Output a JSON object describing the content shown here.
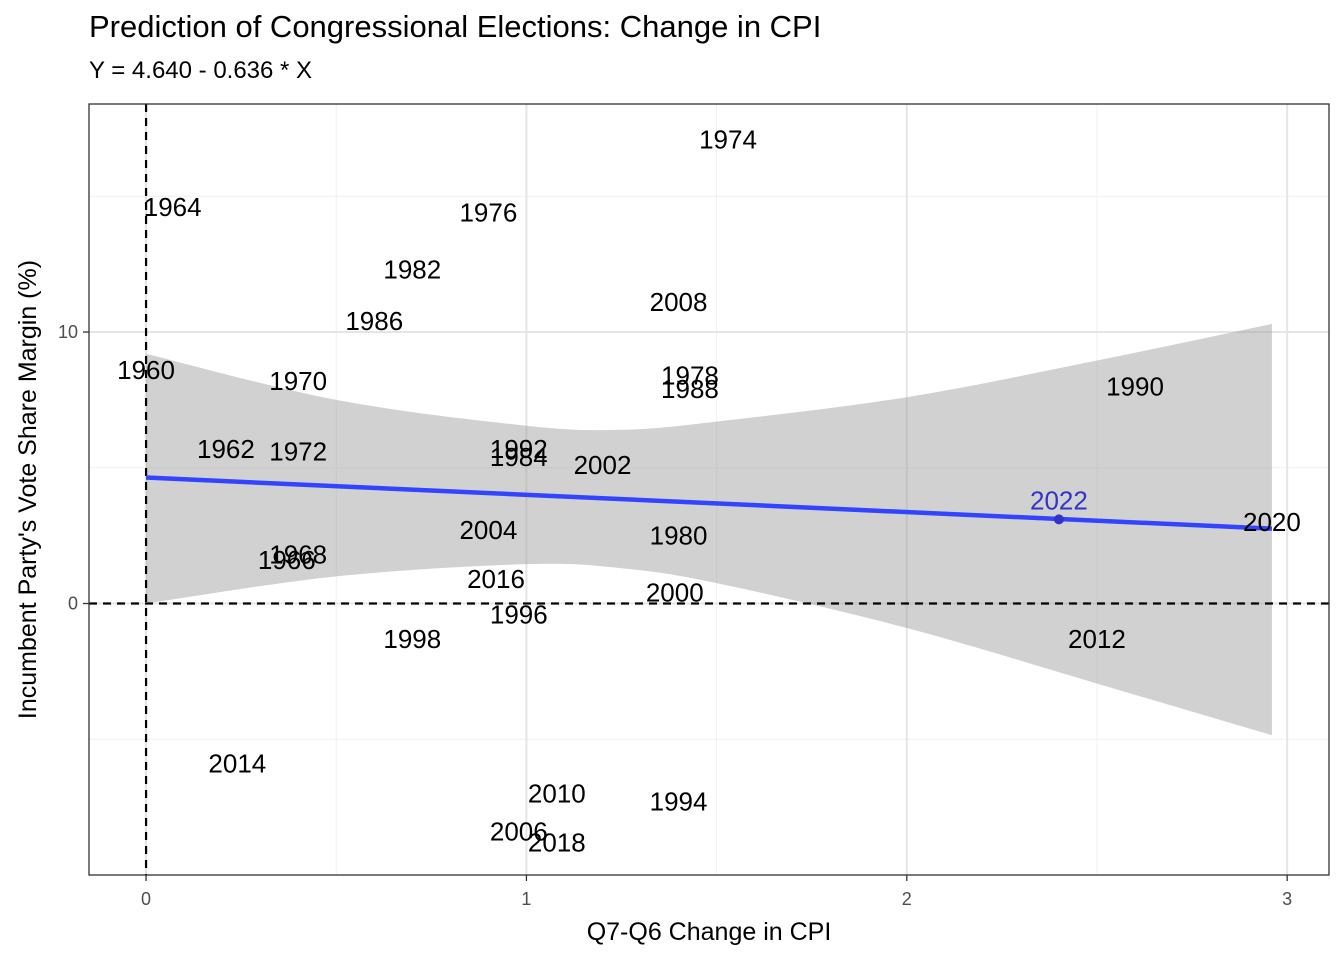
{
  "chart_data": {
    "type": "scatter",
    "title": "Prediction of Congressional Elections: Change in CPI",
    "subtitle": "Y = 4.640 - 0.636 * X",
    "xlabel": "Q7-Q6 Change in CPI",
    "ylabel": "Incumbent Party's Vote Share Margin (%)",
    "xlim": [
      -0.15,
      3.11
    ],
    "ylim": [
      -10.0,
      18.4
    ],
    "x_ticks": [
      0,
      1,
      2,
      3
    ],
    "y_ticks": [
      0,
      10
    ],
    "grid": true,
    "reference_lines": {
      "x": 0,
      "y": 0,
      "style": "dashed"
    },
    "colors": {
      "regression_line": "#3344ff",
      "confidence_band": "#999999",
      "highlight": "#3333cc",
      "point_label": "#000000",
      "grid": "#e5e5e5"
    },
    "regression": {
      "intercept": 4.64,
      "slope": -0.636,
      "x_range": [
        0,
        2.96
      ],
      "confidence_band": [
        {
          "x": 0.0,
          "lower": 0.0,
          "upper": 9.2
        },
        {
          "x": 0.5,
          "lower": 1.0,
          "upper": 7.5
        },
        {
          "x": 1.0,
          "lower": 1.45,
          "upper": 6.55
        },
        {
          "x": 1.25,
          "lower": 1.3,
          "upper": 6.4
        },
        {
          "x": 1.5,
          "lower": 0.75,
          "upper": 6.7
        },
        {
          "x": 2.0,
          "lower": -0.9,
          "upper": 7.6
        },
        {
          "x": 2.5,
          "lower": -2.95,
          "upper": 8.95
        },
        {
          "x": 2.96,
          "lower": -4.85,
          "upper": 10.3
        }
      ]
    },
    "points": [
      {
        "label": "1960",
        "x": 0.0,
        "y": 8.6
      },
      {
        "label": "1962",
        "x": 0.21,
        "y": 5.7
      },
      {
        "label": "1964",
        "x": 0.07,
        "y": 14.6
      },
      {
        "label": "1966",
        "x": 0.37,
        "y": 1.6
      },
      {
        "label": "1968",
        "x": 0.4,
        "y": 1.8
      },
      {
        "label": "1970",
        "x": 0.4,
        "y": 8.2
      },
      {
        "label": "1972",
        "x": 0.4,
        "y": 5.6
      },
      {
        "label": "1974",
        "x": 1.53,
        "y": 17.1
      },
      {
        "label": "1976",
        "x": 0.9,
        "y": 14.4
      },
      {
        "label": "1978",
        "x": 1.43,
        "y": 8.4
      },
      {
        "label": "1980",
        "x": 1.4,
        "y": 2.5
      },
      {
        "label": "1982",
        "x": 0.7,
        "y": 12.3
      },
      {
        "label": "1984",
        "x": 0.98,
        "y": 5.4
      },
      {
        "label": "1986",
        "x": 0.6,
        "y": 10.4
      },
      {
        "label": "1988",
        "x": 1.43,
        "y": 7.9
      },
      {
        "label": "1990",
        "x": 2.6,
        "y": 8.0
      },
      {
        "label": "1992",
        "x": 0.98,
        "y": 5.7
      },
      {
        "label": "1994",
        "x": 1.4,
        "y": -7.3
      },
      {
        "label": "1996",
        "x": 0.98,
        "y": -0.4
      },
      {
        "label": "1998",
        "x": 0.7,
        "y": -1.3
      },
      {
        "label": "2000",
        "x": 1.39,
        "y": 0.4
      },
      {
        "label": "2002",
        "x": 1.2,
        "y": 5.1
      },
      {
        "label": "2004",
        "x": 0.9,
        "y": 2.7
      },
      {
        "label": "2006",
        "x": 0.98,
        "y": -8.4
      },
      {
        "label": "2008",
        "x": 1.4,
        "y": 11.1
      },
      {
        "label": "2010",
        "x": 1.08,
        "y": -7.0
      },
      {
        "label": "2012",
        "x": 2.5,
        "y": -1.3
      },
      {
        "label": "2014",
        "x": 0.24,
        "y": -5.9
      },
      {
        "label": "2016",
        "x": 0.92,
        "y": 0.9
      },
      {
        "label": "2018",
        "x": 1.08,
        "y": -8.8
      },
      {
        "label": "2020",
        "x": 2.96,
        "y": 3.0
      },
      {
        "label": "2022",
        "x": 2.4,
        "y": 3.1,
        "highlight": true,
        "label_y": 3.8
      }
    ]
  }
}
